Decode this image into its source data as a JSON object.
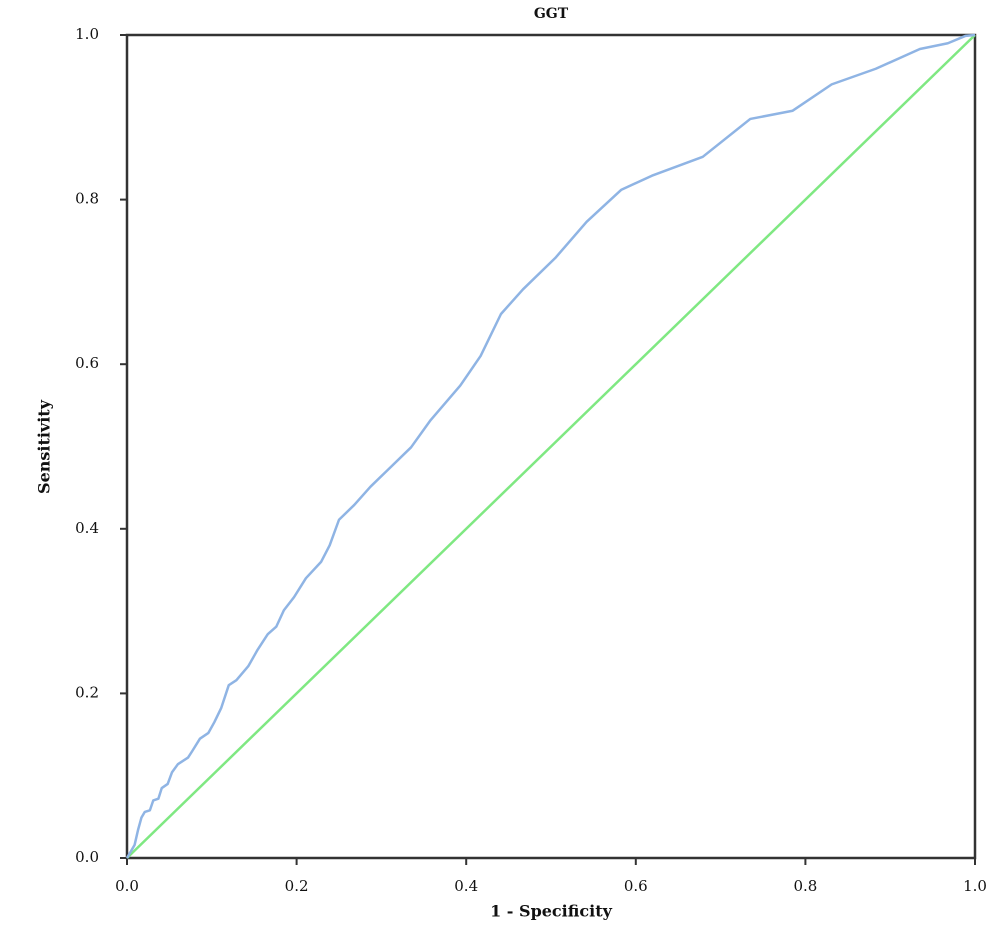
{
  "chart_data": {
    "type": "line",
    "title": "GGT",
    "x_label": "1 - Specificity",
    "y_label": "Sensitivity",
    "xlim": [
      0,
      1
    ],
    "ylim": [
      0,
      1
    ],
    "xticks": [
      {
        "value": 0,
        "label": "0.0"
      },
      {
        "value": 0.2,
        "label": "0.2"
      },
      {
        "value": 0.4,
        "label": "0.4"
      },
      {
        "value": 0.6,
        "label": "0.6"
      },
      {
        "value": 0.8,
        "label": "0.8"
      },
      {
        "value": 1,
        "label": "1.0"
      }
    ],
    "yticks": [
      {
        "value": 0,
        "label": "0.0"
      },
      {
        "value": 0.2,
        "label": "0.2"
      },
      {
        "value": 0.4,
        "label": "0.4"
      },
      {
        "value": 0.6,
        "label": "0.6"
      },
      {
        "value": 0.8,
        "label": "0.8"
      },
      {
        "value": 1,
        "label": "1.0"
      }
    ],
    "series": [
      {
        "color": "#8fb4e4",
        "x": [
          0,
          0.009,
          0.013,
          0.017,
          0.021,
          0.027,
          0.031,
          0.037,
          0.041,
          0.048,
          0.053,
          0.06,
          0.072,
          0.077,
          0.086,
          0.096,
          0.103,
          0.111,
          0.12,
          0.129,
          0.143,
          0.154,
          0.166,
          0.176,
          0.185,
          0.197,
          0.211,
          0.229,
          0.239,
          0.25,
          0.268,
          0.287,
          0.307,
          0.335,
          0.358,
          0.393,
          0.417,
          0.441,
          0.467,
          0.505,
          0.542,
          0.583,
          0.619,
          0.679,
          0.735,
          0.785,
          0.831,
          0.883,
          0.935,
          0.968,
          0.989,
          1
        ],
        "values": [
          0,
          0.016,
          0.034,
          0.049,
          0.056,
          0.058,
          0.07,
          0.072,
          0.085,
          0.09,
          0.104,
          0.114,
          0.122,
          0.13,
          0.145,
          0.152,
          0.165,
          0.182,
          0.21,
          0.216,
          0.233,
          0.253,
          0.272,
          0.281,
          0.301,
          0.317,
          0.34,
          0.36,
          0.38,
          0.411,
          0.429,
          0.451,
          0.471,
          0.499,
          0.532,
          0.574,
          0.61,
          0.661,
          0.691,
          0.729,
          0.773,
          0.812,
          0.829,
          0.852,
          0.898,
          0.908,
          0.94,
          0.959,
          0.983,
          0.99,
          0.999,
          1
        ]
      },
      {
        "color": "#7fe882",
        "x": [
          0,
          1
        ],
        "values": [
          0,
          1
        ]
      }
    ]
  }
}
